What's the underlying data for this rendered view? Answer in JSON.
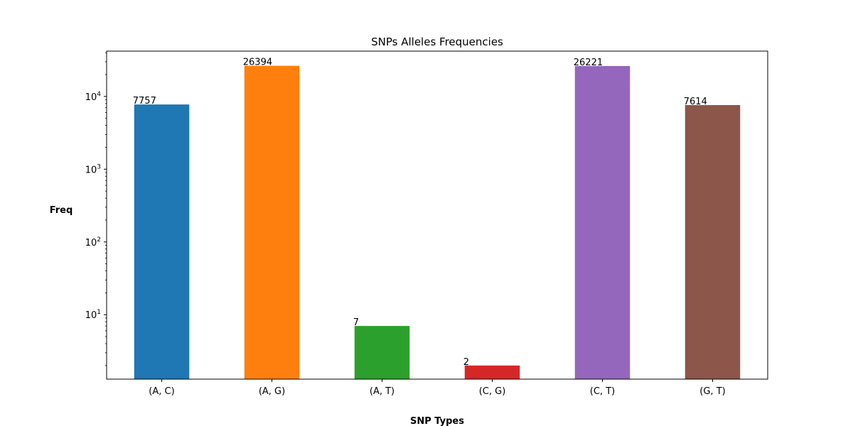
{
  "chart_data": {
    "type": "bar",
    "title": "SNPs Alleles Frequencies",
    "xlabel": "SNP Types",
    "ylabel": "Freq",
    "yscale": "log",
    "ylim": [
      1.3,
      42000
    ],
    "grid": false,
    "legend": "none",
    "categories": [
      "(A, C)",
      "(A, G)",
      "(A, T)",
      "(C, G)",
      "(C, T)",
      "(G, T)"
    ],
    "values": [
      7757,
      26394,
      7,
      2,
      26221,
      7614
    ],
    "data_labels": [
      "7757",
      "26394",
      "7",
      "2",
      "26221",
      "7614"
    ],
    "y_major_ticks": [
      {
        "value": 10,
        "base": "10",
        "exp": "1"
      },
      {
        "value": 100,
        "base": "10",
        "exp": "2"
      },
      {
        "value": 1000,
        "base": "10",
        "exp": "3"
      },
      {
        "value": 10000,
        "base": "10",
        "exp": "4"
      }
    ],
    "colors": [
      "#1f77b4",
      "#ff7f0e",
      "#2ca02c",
      "#d62728",
      "#9467bd",
      "#8c564b"
    ]
  }
}
